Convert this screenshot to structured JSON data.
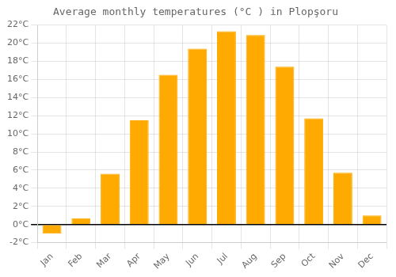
{
  "chart_data": {
    "type": "bar",
    "title": "Average monthly temperatures (°C ) in Plopşoru",
    "categories": [
      "Jan",
      "Feb",
      "Mar",
      "Apr",
      "May",
      "Jun",
      "Jul",
      "Aug",
      "Sep",
      "Oct",
      "Nov",
      "Dec"
    ],
    "values": [
      -1.0,
      0.7,
      5.6,
      11.5,
      16.5,
      19.4,
      21.3,
      20.9,
      17.4,
      11.7,
      5.7,
      1.0
    ],
    "color": "#FFAA00",
    "ylim": [
      -2,
      22
    ],
    "yticks": [
      {
        "value": -2,
        "label": "-2°C"
      },
      {
        "value": 0,
        "label": "0°C"
      },
      {
        "value": 2,
        "label": "2°C"
      },
      {
        "value": 4,
        "label": "4°C"
      },
      {
        "value": 6,
        "label": "6°C"
      },
      {
        "value": 8,
        "label": "8°C"
      },
      {
        "value": 10,
        "label": "10°C"
      },
      {
        "value": 12,
        "label": "12°C"
      },
      {
        "value": 14,
        "label": "14°C"
      },
      {
        "value": 16,
        "label": "16°C"
      },
      {
        "value": 18,
        "label": "18°C"
      },
      {
        "value": 20,
        "label": "20°C"
      },
      {
        "value": 22,
        "label": "22°C"
      }
    ],
    "grid": true
  }
}
